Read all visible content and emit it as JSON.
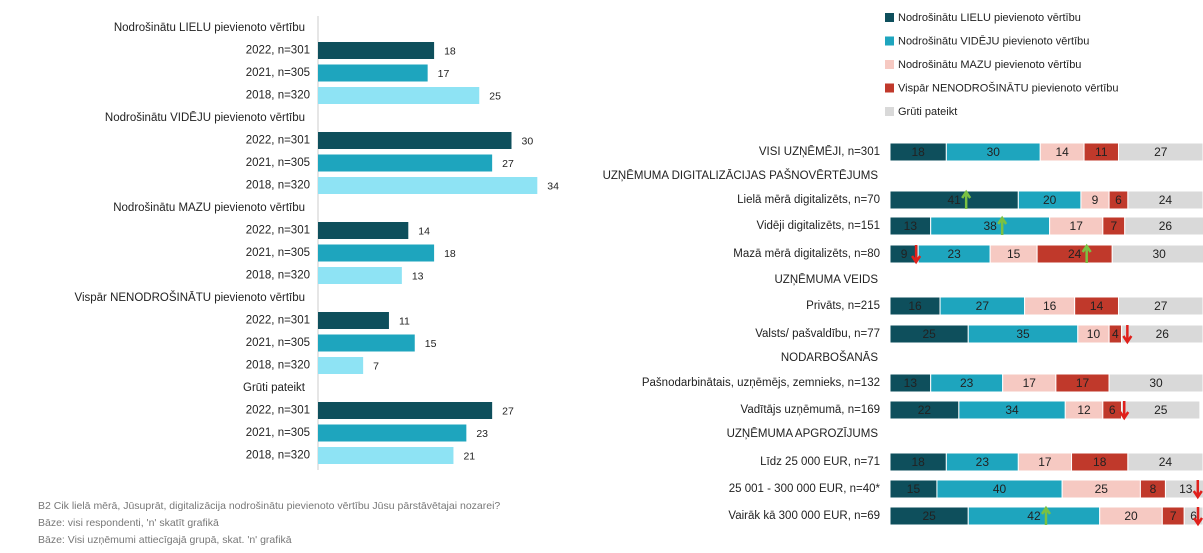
{
  "chart_data": [
    {
      "type": "grouped_hbar",
      "groups": [
        "Nodrošinātu LIELU pievienoto vērtību",
        "Nodrošinātu VIDĒJU pievienoto vērtību",
        "Nodrošinātu MAZU pievienoto vērtību",
        "Vispār NENODROŠINĀTU pievienoto vērtību",
        "Grūti pateikt"
      ],
      "series": [
        {
          "name": "2022, n=301",
          "color": "#0e4f5c",
          "values": [
            18,
            30,
            14,
            11,
            27
          ]
        },
        {
          "name": "2021, n=305",
          "color": "#1ea5be",
          "values": [
            17,
            27,
            18,
            15,
            23
          ]
        },
        {
          "name": "2018, n=320",
          "color": "#8ee3f4",
          "values": [
            25,
            34,
            13,
            7,
            21
          ]
        }
      ]
    },
    {
      "type": "stacked_hbar",
      "categories": [
        "VISI UZŅĒMĒJI, n=301",
        "UZŅĒMUMA DIGITALIZĀCIJAS PAŠNOVĒRTĒJUMS",
        "Lielā mērā digitalizēts, n=70",
        "Vidēji digitalizēts, n=151",
        "Mazā mērā digitalizēts, n=80",
        "UZŅĒMUMA VEIDS",
        "Privāts, n=215",
        "Valsts/ pašvaldību, n=77",
        "NODARBOŠANĀS",
        "Pašnodarbinātais, uzņēmējs, zemnieks, n=132",
        "Vadītājs uzņēmumā, n=169",
        "UZŅĒMUMA APGROZĪJUMS",
        "Līdz 25 000 EUR, n=71",
        "25 001 - 300 000 EUR, n=40*",
        "Vairāk kā 300 000 EUR, n=69"
      ],
      "series": [
        {
          "name": "Nodrošinātu LIELU pievienoto vērtību",
          "color": "#0e4f5c",
          "values": [
            18,
            null,
            41,
            13,
            9,
            null,
            16,
            25,
            null,
            13,
            22,
            null,
            18,
            15,
            25
          ]
        },
        {
          "name": "Nodrošinātu VIDĒJU pievienoto vērtību",
          "color": "#1ea5be",
          "values": [
            30,
            null,
            20,
            38,
            23,
            null,
            27,
            35,
            null,
            23,
            34,
            null,
            23,
            40,
            42
          ]
        },
        {
          "name": "Nodrošinātu MAZU pievienoto vērtību",
          "color": "#f6c9c2",
          "values": [
            14,
            null,
            9,
            17,
            15,
            null,
            16,
            10,
            null,
            17,
            12,
            null,
            17,
            25,
            20
          ]
        },
        {
          "name": "Vispār NENODROŠINĀTU pievienoto vērtību",
          "color": "#c0392b",
          "values": [
            11,
            null,
            6,
            7,
            24,
            null,
            14,
            4,
            null,
            17,
            6,
            null,
            18,
            8,
            7
          ]
        },
        {
          "name": "Grūti pateikt",
          "color": "#d9d9d9",
          "values": [
            27,
            null,
            24,
            26,
            30,
            null,
            27,
            26,
            null,
            30,
            25,
            null,
            24,
            13,
            6
          ]
        }
      ]
    }
  ],
  "footnotes": [
    "B2 Cik lielā mērā, Jūsuprāt, digitalizācija nodrošinātu pievienoto vērtību Jūsu pārstāvētajai nozarei?",
    "Bāze: visi respondenti, 'n' skatīt grafikā",
    "Bāze: Visi uzņēmumi attiecīgajā grupā, skat. 'n' grafikā"
  ]
}
